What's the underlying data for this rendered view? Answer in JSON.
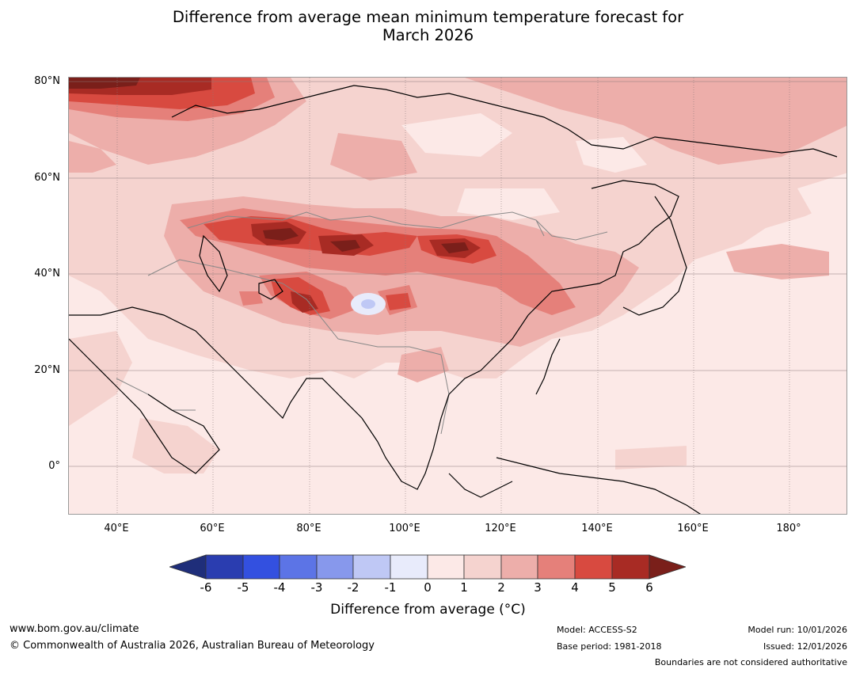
{
  "title": {
    "line1": "Difference from average mean minimum temperature forecast for",
    "line2": "March 2026"
  },
  "map": {
    "region": "Asia",
    "lat_labels": [
      "80°N",
      "60°N",
      "40°N",
      "20°N",
      "0°"
    ],
    "lon_labels": [
      "40°E",
      "60°E",
      "80°E",
      "100°E",
      "120°E",
      "140°E",
      "160°E",
      "180°"
    ]
  },
  "colorbar": {
    "ticks": [
      "-6",
      "-5",
      "-4",
      "-3",
      "-2",
      "-1",
      "0",
      "1",
      "2",
      "3",
      "4",
      "5",
      "6"
    ],
    "colors": {
      "c_lt_m6": "#1f2e7a",
      "c_m6_m5": "#2a3db0",
      "c_m5_m4": "#3350e0",
      "c_m4_m3": "#5c74e6",
      "c_m3_m2": "#8798ec",
      "c_m2_m1": "#bfc8f5",
      "c_m1_0": "#e8ebfb",
      "c_0_1": "#fce9e7",
      "c_1_2": "#f5d3cf",
      "c_2_3": "#edaeaa",
      "c_3_4": "#e5807a",
      "c_4_5": "#d84a40",
      "c_5_6": "#a82b24",
      "c_gt_6": "#7a1f1a"
    },
    "label": "Difference from average (°C)"
  },
  "footer": {
    "website": "www.bom.gov.au/climate",
    "copyright": "© Commonwealth of Australia 2026, Australian Bureau of Meteorology",
    "model": "Model: ACCESS-S2",
    "base_period": "Base period: 1981-2018",
    "model_run": "Model run: 10/01/2026",
    "issued": "Issued: 12/01/2026",
    "disclaimer": "Boundaries are not considered authoritative"
  }
}
